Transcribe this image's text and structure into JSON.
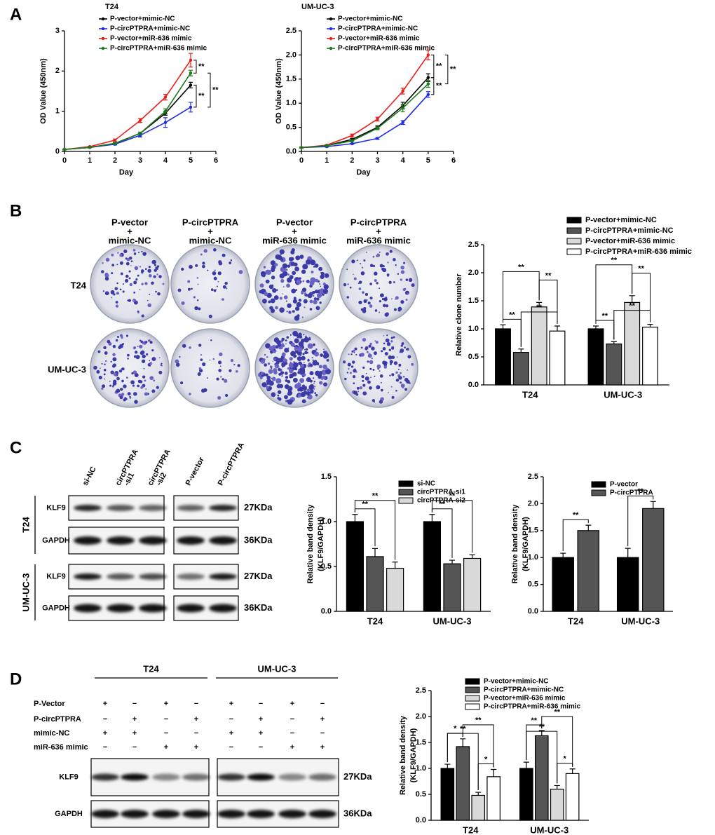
{
  "panel_labels": [
    "A",
    "B",
    "C",
    "D"
  ],
  "chart_data": [
    {
      "type": "line",
      "title": "T24",
      "xlabel": "Day",
      "ylabel": "OD Value (450nm)",
      "x": [
        0,
        1,
        2,
        3,
        4,
        5
      ],
      "xlim": [
        0,
        6
      ],
      "xticks": [
        0,
        1,
        2,
        3,
        4,
        5,
        6
      ],
      "ylim": [
        0,
        3
      ],
      "yticks": [
        0,
        1,
        2,
        3
      ],
      "series": [
        {
          "name": "P-vector+mimic-NC",
          "color": "#000000",
          "values": [
            0.05,
            0.1,
            0.2,
            0.45,
            0.95,
            1.65
          ],
          "errors": [
            0.01,
            0.01,
            0.02,
            0.03,
            0.05,
            0.07
          ]
        },
        {
          "name": "P-circPTPRA+mimic-NC",
          "color": "#1f2de0",
          "values": [
            0.05,
            0.1,
            0.18,
            0.4,
            0.72,
            1.1
          ],
          "errors": [
            0.01,
            0.01,
            0.02,
            0.04,
            0.12,
            0.12
          ]
        },
        {
          "name": "P-vector+miR-636 mimic",
          "color": "#e8201c",
          "values": [
            0.05,
            0.12,
            0.28,
            0.77,
            1.35,
            2.27
          ],
          "errors": [
            0.01,
            0.01,
            0.03,
            0.05,
            0.07,
            0.17
          ]
        },
        {
          "name": "P-circPTPRA+miR-636 mimic",
          "color": "#1a7a1a",
          "values": [
            0.05,
            0.1,
            0.2,
            0.45,
            1.0,
            1.95
          ],
          "errors": [
            0.01,
            0.01,
            0.02,
            0.03,
            0.06,
            0.07
          ]
        }
      ],
      "annotations": [
        "**",
        "**",
        "**"
      ]
    },
    {
      "type": "line",
      "title": "UM-UC-3",
      "xlabel": "Day",
      "ylabel": "OD Value (450nm)",
      "x": [
        0,
        1,
        2,
        3,
        4,
        5
      ],
      "xlim": [
        0,
        6
      ],
      "xticks": [
        0,
        1,
        2,
        3,
        4,
        5,
        6
      ],
      "ylim": [
        0,
        2.5
      ],
      "yticks": [
        {
          "value": 0,
          "label": "0.0"
        },
        0.5,
        {
          "value": 1,
          "label": "1.0"
        },
        1.5,
        {
          "value": 2,
          "label": "2.0"
        },
        2.5
      ],
      "series": [
        {
          "name": "P-vector+mimic-NC",
          "color": "#000000",
          "values": [
            0.08,
            0.12,
            0.25,
            0.5,
            0.95,
            1.53
          ],
          "errors": [
            0.01,
            0.01,
            0.02,
            0.03,
            0.07,
            0.08
          ]
        },
        {
          "name": "P-circPTPRA+mimic-NC",
          "color": "#1f2de0",
          "values": [
            0.08,
            0.1,
            0.16,
            0.27,
            0.6,
            1.18
          ],
          "errors": [
            0.01,
            0.01,
            0.01,
            0.02,
            0.04,
            0.06
          ]
        },
        {
          "name": "P-vector+miR-636 mimic",
          "color": "#e8201c",
          "values": [
            0.08,
            0.13,
            0.33,
            0.67,
            1.25,
            2.0
          ],
          "errors": [
            0.01,
            0.01,
            0.03,
            0.04,
            0.06,
            0.1
          ]
        },
        {
          "name": "P-circPTPRA+miR-636 mimic",
          "color": "#1a7a1a",
          "values": [
            0.08,
            0.12,
            0.22,
            0.48,
            0.9,
            1.4
          ],
          "errors": [
            0.01,
            0.01,
            0.02,
            0.03,
            0.08,
            0.07
          ]
        }
      ],
      "annotations": [
        "**",
        "**",
        "**"
      ]
    },
    {
      "type": "bar",
      "ylabel": [
        "Relative clone number"
      ],
      "categories": [
        "T24",
        "UM-UC-3"
      ],
      "ylim": [
        0,
        2.5
      ],
      "yticks": [
        {
          "value": 0,
          "label": "0.0"
        },
        0.5,
        {
          "value": 1,
          "label": "1.0"
        },
        1.5,
        {
          "value": 2,
          "label": "2.0"
        },
        2.5
      ],
      "series": [
        {
          "name": "P-vector+mimic-NC",
          "color": "#000000",
          "values": [
            1.0,
            1.0
          ],
          "errors": [
            0.07,
            0.05
          ]
        },
        {
          "name": "P-circPTPRA+mimic-NC",
          "color": "#555555",
          "values": [
            0.58,
            0.73
          ],
          "errors": [
            0.06,
            0.04
          ]
        },
        {
          "name": "P-vector+miR-636 mimic",
          "color": "#d9d9d9",
          "values": [
            1.39,
            1.47
          ],
          "errors": [
            0.08,
            0.12
          ]
        },
        {
          "name": "P-circPTPRA+miR-636 mimic",
          "color": "#ffffff",
          "values": [
            0.96,
            1.03
          ],
          "errors": [
            0.09,
            0.05
          ]
        }
      ],
      "annotations": [
        "**",
        "**",
        "**",
        "**",
        "**",
        "**",
        "**",
        "**"
      ]
    },
    {
      "type": "bar",
      "ylabel": [
        "Relative band density",
        "(KLF9/GAPDH)"
      ],
      "categories": [
        "T24",
        "UM-UC-3"
      ],
      "ylim": [
        0,
        1.5
      ],
      "yticks": [
        {
          "value": 0,
          "label": "0.0"
        },
        0.5,
        {
          "value": 1,
          "label": "1.0"
        },
        1.5
      ],
      "series": [
        {
          "name": "si-NC",
          "color": "#000000",
          "values": [
            1.0,
            1.0
          ],
          "errors": [
            0.08,
            0.08
          ]
        },
        {
          "name": "circPTPRA-si1",
          "color": "#555555",
          "values": [
            0.61,
            0.53
          ],
          "errors": [
            0.09,
            0.04
          ]
        },
        {
          "name": "circPTPRA-si2",
          "color": "#d9d9d9",
          "values": [
            0.48,
            0.59
          ],
          "errors": [
            0.07,
            0.04
          ]
        }
      ],
      "annotations": [
        "**",
        "**",
        "**",
        "**"
      ]
    },
    {
      "type": "bar",
      "ylabel": [
        "Relative band density",
        "(KLF9/GAPDH)"
      ],
      "categories": [
        "T24",
        "UM-UC-3"
      ],
      "ylim": [
        0,
        2.5
      ],
      "yticks": [
        {
          "value": 0,
          "label": "0.0"
        },
        0.5,
        {
          "value": 1,
          "label": "1.0"
        },
        1.5,
        {
          "value": 2,
          "label": "2.0"
        },
        2.5
      ],
      "series": [
        {
          "name": "P-vector",
          "color": "#000000",
          "values": [
            1.0,
            1.0
          ],
          "errors": [
            0.08,
            0.17
          ]
        },
        {
          "name": "P-circPTPRA",
          "color": "#555555",
          "values": [
            1.5,
            1.91
          ],
          "errors": [
            0.1,
            0.13
          ]
        }
      ],
      "annotations": [
        "**",
        "**"
      ]
    },
    {
      "type": "bar",
      "ylabel": [
        "Relative band density",
        "(KLF9/GAPDH)"
      ],
      "categories": [
        "T24",
        "UM-UC-3"
      ],
      "ylim": [
        0,
        2.5
      ],
      "yticks": [
        {
          "value": 0,
          "label": "0.0"
        },
        0.5,
        {
          "value": 1,
          "label": "1.0"
        },
        1.5,
        {
          "value": 2,
          "label": "2.0"
        },
        2.5
      ],
      "series": [
        {
          "name": "P-vector+mimic-NC",
          "color": "#000000",
          "values": [
            1.0,
            1.0
          ],
          "errors": [
            0.08,
            0.12
          ]
        },
        {
          "name": "P-circPTPRA+mimic-NC",
          "color": "#555555",
          "values": [
            1.42,
            1.63
          ],
          "errors": [
            0.15,
            0.1
          ]
        },
        {
          "name": "P-vector+miR-636 mimic",
          "color": "#d9d9d9",
          "values": [
            0.48,
            0.6
          ],
          "errors": [
            0.06,
            0.07
          ]
        },
        {
          "name": "P-circPTPRA+miR-636 mimic",
          "color": "#ffffff",
          "values": [
            0.84,
            0.9
          ],
          "errors": [
            0.14,
            0.09
          ]
        }
      ],
      "annotations": [
        "*",
        "**",
        "**",
        "*",
        "**",
        "**",
        "**",
        "*"
      ]
    }
  ],
  "colony": {
    "columns": [
      [
        "P-vector",
        "+",
        "mimic-NC"
      ],
      [
        "P-circPTPRA",
        "+",
        "mimic-NC"
      ],
      [
        "P-vector",
        "+",
        "miR-636 mimic"
      ],
      [
        "P-circPTPRA",
        "+",
        "miR-636 mimic"
      ]
    ],
    "rows": [
      "T24",
      "UM-UC-3"
    ]
  },
  "blot_c": {
    "lanes": [
      [
        "si-NC"
      ],
      [
        "circPTPRA",
        "-si1"
      ],
      [
        "circPTPRA",
        "-si2"
      ],
      [
        "P-vector"
      ],
      [
        "P-circPTPRA"
      ]
    ],
    "cells": [
      "T24",
      "UM-UC-3"
    ],
    "proteins": [
      "KLF9",
      "GAPDH"
    ],
    "sizes": [
      "27KDa",
      "36KDa"
    ]
  },
  "blot_d": {
    "groups": [
      "T24",
      "UM-UC-3"
    ],
    "conditions": [
      {
        "name": "P-Vector",
        "signs": [
          "+",
          "−",
          "+",
          "−",
          "+",
          "−",
          "+",
          "−"
        ]
      },
      {
        "name": "P-circPTPRA",
        "signs": [
          "−",
          "+",
          "−",
          "+",
          "−",
          "+",
          "−",
          "+"
        ]
      },
      {
        "name": "mimic-NC",
        "signs": [
          "+",
          "+",
          "−",
          "−",
          "+",
          "+",
          "−",
          "−"
        ]
      },
      {
        "name": "miR-636 mimic",
        "signs": [
          "−",
          "−",
          "+",
          "+",
          "−",
          "−",
          "+",
          "+"
        ]
      }
    ],
    "proteins": [
      "KLF9",
      "GAPDH"
    ],
    "sizes": [
      "27KDa",
      "36KDa"
    ]
  }
}
